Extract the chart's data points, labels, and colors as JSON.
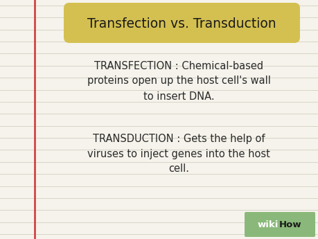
{
  "fig_width": 4.6,
  "fig_height": 3.45,
  "dpi": 100,
  "bg_color": "#f5f3eb",
  "line_color": "#d8d5c8",
  "red_line_color": "#cc3333",
  "red_line_x": 0.108,
  "title": "Transfection vs. Transduction",
  "title_bg": "#d4c050",
  "title_fontsize": 13.5,
  "title_color": "#1a1a1a",
  "body_fontsize": 10.5,
  "body_color": "#2a2a2a",
  "line1": "TRANSFECTION : Chemical-based",
  "line2": "proteins open up the host cell's wall",
  "line3": "to insert DNA.",
  "line4": "TRANSDUCTION : Gets the help of",
  "line5": "viruses to inject genes into the host",
  "line6": "cell.",
  "wikihow_bg": "#8ab87a",
  "wikihow_wiki_color": "#ffffff",
  "wikihow_how_color": "#1a1a1a",
  "wikihow_fontsize": 9.5
}
